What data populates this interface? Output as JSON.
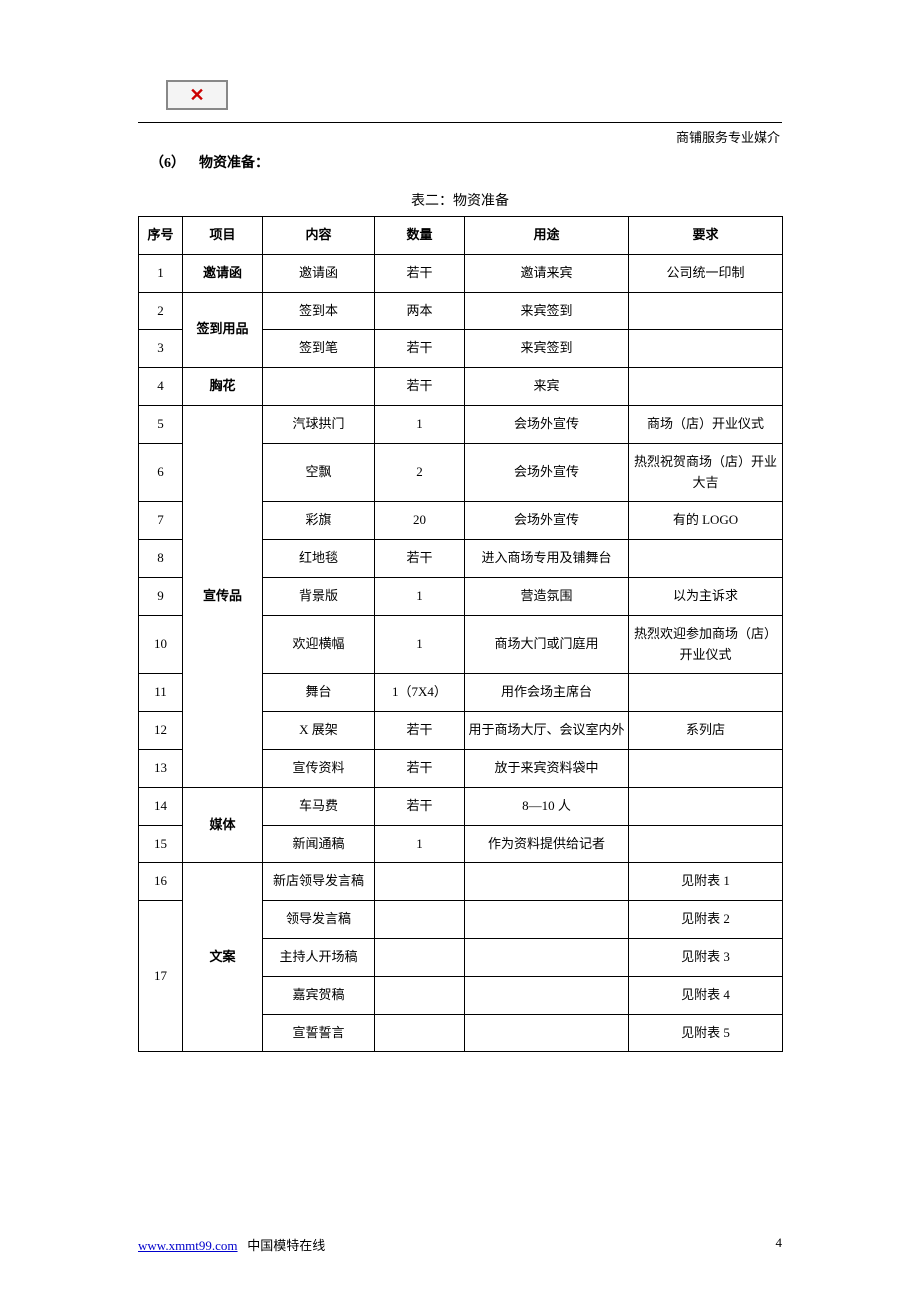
{
  "header": {
    "tagline": "商铺服务专业媒介"
  },
  "section": {
    "number": "（6）",
    "title": "物资准备："
  },
  "table": {
    "caption": "表二：物资准备",
    "headers": {
      "idx": "序号",
      "item": "项目",
      "content": "内容",
      "qty": "数量",
      "use": "用途",
      "req": "要求"
    },
    "rows": [
      {
        "idx": "1",
        "item": "邀请函",
        "content": "邀请函",
        "qty": "若干",
        "use": "邀请来宾",
        "req": "公司统一印制",
        "item_bold": true
      },
      {
        "idx": "2",
        "item": "签到用品",
        "content": "签到本",
        "qty": "两本",
        "use": "来宾签到",
        "req": "",
        "item_rowspan": 2,
        "item_bold": true
      },
      {
        "idx": "3",
        "content": "签到笔",
        "qty": "若干",
        "use": "来宾签到",
        "req": ""
      },
      {
        "idx": "4",
        "item": "胸花",
        "content": "",
        "qty": "若干",
        "use": "来宾",
        "req": "",
        "item_bold": true
      },
      {
        "idx": "5",
        "item": "宣传品",
        "content": "汽球拱门",
        "qty": "1",
        "use": "会场外宣传",
        "req": "商场（店）开业仪式",
        "item_rowspan": 9,
        "item_bold": true
      },
      {
        "idx": "6",
        "content": "空飘",
        "qty": "2",
        "use": "会场外宣传",
        "req": "热烈祝贺商场（店）开业大吉",
        "req_twoline": true
      },
      {
        "idx": "7",
        "content": "彩旗",
        "qty": "20",
        "use": "会场外宣传",
        "req": "有的 LOGO"
      },
      {
        "idx": "8",
        "content": "红地毯",
        "qty": "若干",
        "use": "进入商场专用及铺舞台",
        "req": ""
      },
      {
        "idx": "9",
        "content": "背景版",
        "qty": "1",
        "use": "营造氛围",
        "req": "以为主诉求"
      },
      {
        "idx": "10",
        "content": "欢迎横幅",
        "qty": "1",
        "use": "商场大门或门庭用",
        "req": "热烈欢迎参加商场（店）开业仪式",
        "req_twoline": true
      },
      {
        "idx": "11",
        "content": "舞台",
        "qty": "1（7X4）",
        "use": "用作会场主席台",
        "req": ""
      },
      {
        "idx": "12",
        "content": "X 展架",
        "qty": "若干",
        "use": "用于商场大厅、会议室内外",
        "req": "系列店",
        "use_twoline": true
      },
      {
        "idx": "13",
        "content": "宣传资料",
        "qty": "若干",
        "use": "放于来宾资料袋中",
        "req": ""
      },
      {
        "idx": "14",
        "item": "媒体",
        "content": "车马费",
        "qty": "若干",
        "use": "8—10 人",
        "req": "",
        "item_rowspan": 2,
        "item_bold": true
      },
      {
        "idx": "15",
        "content": "新闻通稿",
        "qty": "1",
        "use": "作为资料提供给记者",
        "req": ""
      },
      {
        "idx": "16",
        "item": "文案",
        "content": "新店领导发言稿",
        "qty": "",
        "use": "",
        "req": "见附表 1",
        "item_rowspan": 5,
        "item_bold": true,
        "idx_single": true
      },
      {
        "idx": "17",
        "content": "领导发言稿",
        "qty": "",
        "use": "",
        "req": "见附表 2",
        "idx_rowspan": 4
      },
      {
        "content": "主持人开场稿",
        "qty": "",
        "use": "",
        "req": "见附表 3"
      },
      {
        "content": "嘉宾贺稿",
        "qty": "",
        "use": "",
        "req": "见附表 4"
      },
      {
        "content": "宣誓誓言",
        "qty": "",
        "use": "",
        "req": "见附表 5"
      }
    ]
  },
  "footer": {
    "url": "www.xmmt99.com",
    "site_name": "中国模特在线",
    "page": "4"
  },
  "colors": {
    "text": "#000000",
    "link": "#0000cc",
    "logo_red": "#cc0000",
    "border": "#000000",
    "background": "#ffffff"
  },
  "typography": {
    "font_family": "SimSun",
    "base_size_pt": 10.5,
    "heading_bold": true
  }
}
